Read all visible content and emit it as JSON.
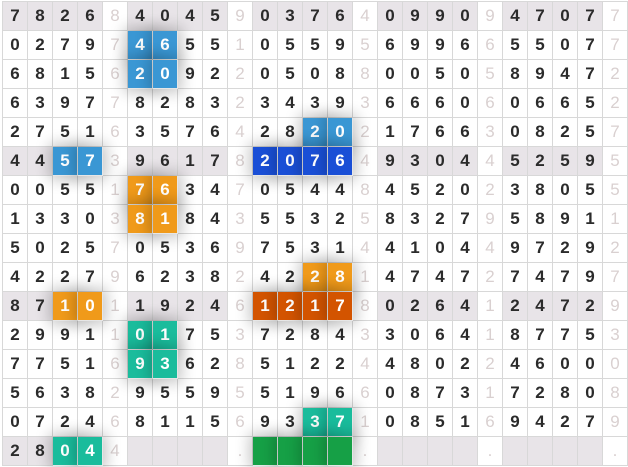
{
  "rows": [
    "7826840459037640990947077",
    "0279746551055956996655077",
    "6815620922050880050589472",
    "6397782832343936660606652",
    "2751635764282021766308257",
    "4457396178207649304452595",
    "0055176347054484520238055",
    "1330381843553258327958911",
    "5025705369753144104497292",
    "4227962382422814747274797",
    "8710119246121780264124729",
    "2991101753728433064187753",
    "7751693628512244802246000",
    "5638295595519660873172808",
    "0724681156933710851694279",
    "2804 . . . ."
  ],
  "last_row_cells": [
    "2",
    "8",
    "0",
    "4",
    "4",
    "",
    "",
    "",
    "",
    ".",
    "",
    "",
    "",
    "",
    ".",
    "",
    "",
    "",
    "",
    ".",
    "",
    "",
    "",
    "",
    "."
  ],
  "separator_columns": [
    4,
    9,
    14,
    19,
    24
  ],
  "gray_rows": [
    0,
    5,
    10,
    15
  ],
  "colors": {
    "blue": "#3a97d4",
    "dark_blue": "#1a4fd6",
    "orange": "#f09a1a",
    "dark_orange": "#d35400",
    "teal": "#1abc9c",
    "green": "#16a046"
  },
  "highlights": [
    {
      "row": 1,
      "cols": [
        5,
        6
      ],
      "color": "blue"
    },
    {
      "row": 2,
      "cols": [
        5,
        6
      ],
      "color": "blue"
    },
    {
      "row": 4,
      "cols": [
        12,
        13
      ],
      "color": "blue"
    },
    {
      "row": 5,
      "cols": [
        2,
        3
      ],
      "color": "blue"
    },
    {
      "row": 5,
      "cols": [
        10,
        11,
        12,
        13
      ],
      "color": "dark_blue"
    },
    {
      "row": 6,
      "cols": [
        5,
        6
      ],
      "color": "orange"
    },
    {
      "row": 7,
      "cols": [
        5,
        6
      ],
      "color": "orange"
    },
    {
      "row": 9,
      "cols": [
        12,
        13
      ],
      "color": "orange"
    },
    {
      "row": 10,
      "cols": [
        2,
        3
      ],
      "color": "orange"
    },
    {
      "row": 10,
      "cols": [
        10,
        11,
        12,
        13
      ],
      "color": "dark_orange"
    },
    {
      "row": 11,
      "cols": [
        5,
        6
      ],
      "color": "teal"
    },
    {
      "row": 12,
      "cols": [
        5,
        6
      ],
      "color": "teal"
    },
    {
      "row": 14,
      "cols": [
        12,
        13
      ],
      "color": "teal"
    },
    {
      "row": 15,
      "cols": [
        2,
        3
      ],
      "color": "teal"
    },
    {
      "row": 15,
      "cols": [
        10,
        11,
        12,
        13
      ],
      "color": "green"
    }
  ]
}
